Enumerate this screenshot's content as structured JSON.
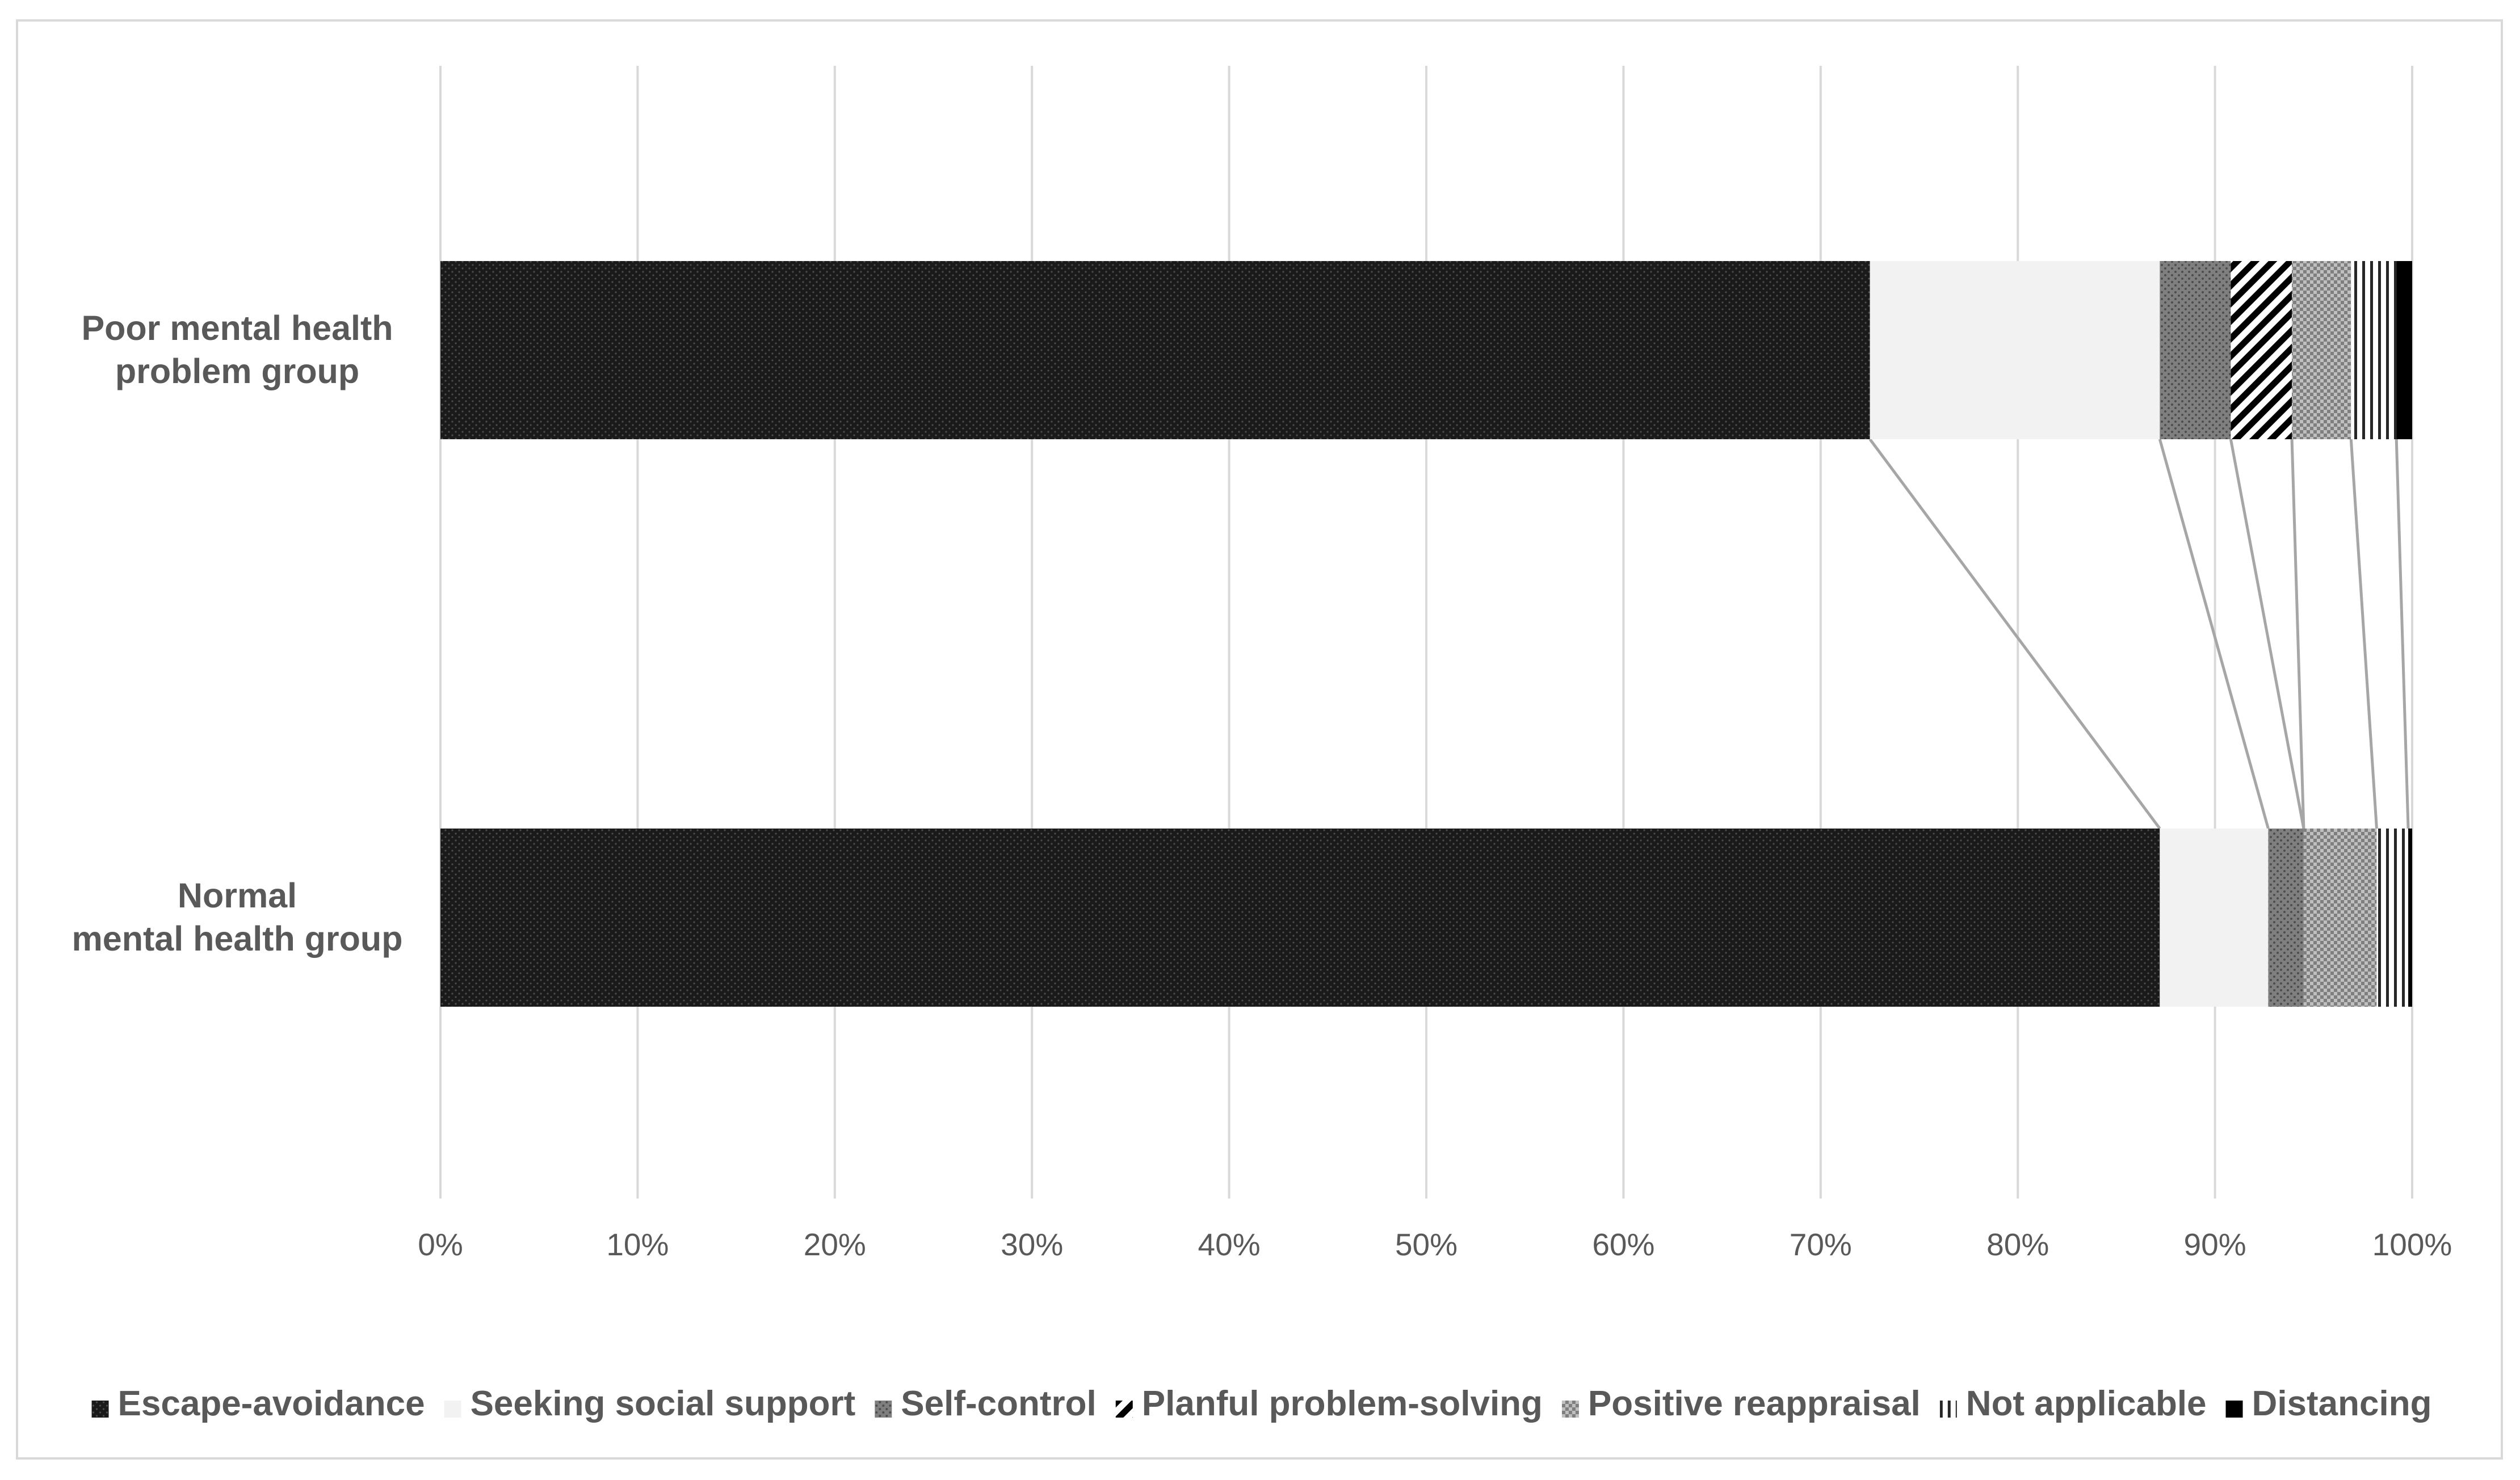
{
  "chart_data": {
    "type": "bar",
    "orientation": "horizontal",
    "stacked": "percent",
    "categories": [
      "Poor mental health\nproblem group",
      "Normal\nmental health group"
    ],
    "series": [
      {
        "name": "Escape-avoidance",
        "values": [
          72.5,
          87.2
        ],
        "pattern": "dark-dots"
      },
      {
        "name": "Seeking social support",
        "values": [
          14.7,
          5.5
        ],
        "pattern": "light-solid"
      },
      {
        "name": "Self-control",
        "values": [
          3.6,
          1.8
        ],
        "pattern": "medium-dots"
      },
      {
        "name": "Planful problem-solving",
        "values": [
          3.1,
          0.0
        ],
        "pattern": "diagonal-stripes"
      },
      {
        "name": "Positive reappraisal",
        "values": [
          3.0,
          3.7
        ],
        "pattern": "checker"
      },
      {
        "name": "Not applicable",
        "values": [
          2.3,
          1.6
        ],
        "pattern": "vertical-stripes"
      },
      {
        "name": "Distancing",
        "values": [
          0.8,
          0.2
        ],
        "pattern": "solid-black"
      }
    ],
    "xticks": [
      "0%",
      "10%",
      "20%",
      "30%",
      "40%",
      "50%",
      "60%",
      "70%",
      "80%",
      "90%",
      "100%"
    ],
    "xlim": [
      0,
      100
    ],
    "grid": "vertical",
    "series_lines": true,
    "legend": "bottom",
    "colors": {
      "gridline": "#d9d9d9",
      "text": "#595959",
      "dark": "#1a1a1a",
      "light": "#f2f2f2",
      "medium": "#7f7f7f",
      "connector": "#a6a6a6"
    }
  }
}
